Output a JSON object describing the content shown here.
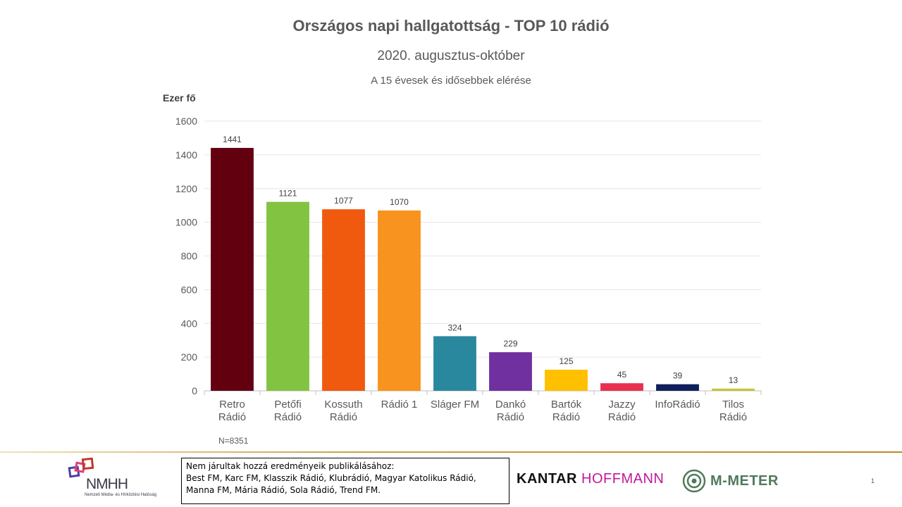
{
  "title": "Országos napi hallgatottság - TOP 10 rádió",
  "subtitle": "2020. augusztus-október",
  "subsubtitle": "A 15 évesek és idősebbek elérése",
  "sample_note": "N=8351",
  "footer": {
    "nmhh_logo_text": "NMHH",
    "nmhh_logo_subtext": "Nemzeti Média- és Hírközlési Hatóság",
    "note_lines": [
      "Nem járultak hozzá eredményeik publikálásához:",
      "Best FM, Karc FM, Klasszik Rádió, Klubrádió, Magyar Katolikus Rádió,",
      "Manna FM, Mária Rádió, Sola Rádió, Trend FM."
    ],
    "kantar_part1": "KANTAR",
    "kantar_part2": "HOFFMANN",
    "mmeter": "M-METER",
    "page_number": "1"
  },
  "chart_data": {
    "type": "bar",
    "title": "Országos napi hallgatottság - TOP 10 rádió",
    "subtitle": "2020. augusztus-október",
    "ylabel": "Ezer fő",
    "xlabel": "",
    "ylim": [
      0,
      1600
    ],
    "yticks": [
      0,
      200,
      400,
      600,
      800,
      1000,
      1200,
      1400,
      1600
    ],
    "grid": true,
    "categories": [
      [
        "Retro",
        "Rádió"
      ],
      [
        "Petőfi",
        "Rádió"
      ],
      [
        "Kossuth",
        "Rádió"
      ],
      [
        "Rádió 1"
      ],
      [
        "Sláger FM"
      ],
      [
        "Dankó",
        "Rádió"
      ],
      [
        "Bartók",
        "Rádió"
      ],
      [
        "Jazzy",
        "Rádió"
      ],
      [
        "InfoRádió"
      ],
      [
        "Tilos",
        "Rádió"
      ]
    ],
    "values": [
      1441,
      1121,
      1077,
      1070,
      324,
      229,
      125,
      45,
      39,
      13
    ],
    "colors": [
      "#630010",
      "#82c341",
      "#f05a0e",
      "#f7931e",
      "#2a889e",
      "#7030a0",
      "#ffc000",
      "#e8304f",
      "#0f1f5c",
      "#c5c537"
    ]
  }
}
